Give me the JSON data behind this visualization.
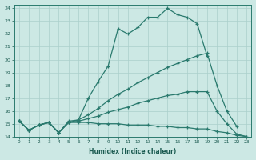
{
  "xlabel": "Humidex (Indice chaleur)",
  "bg_color": "#cce8e4",
  "grid_color": "#aacfcb",
  "line_color": "#2a7a6e",
  "xlim": [
    -0.5,
    23.5
  ],
  "ylim": [
    14,
    24.3
  ],
  "xticks": [
    0,
    1,
    2,
    3,
    4,
    5,
    6,
    7,
    8,
    9,
    10,
    11,
    12,
    13,
    14,
    15,
    16,
    17,
    18,
    19,
    20,
    21,
    22,
    23
  ],
  "yticks": [
    14,
    15,
    16,
    17,
    18,
    19,
    20,
    21,
    22,
    23,
    24
  ],
  "series": [
    {
      "x": [
        0,
        1,
        2,
        3,
        4,
        5,
        6,
        7,
        8,
        9,
        10,
        11,
        12,
        13,
        14,
        15,
        16,
        17,
        18,
        19
      ],
      "y": [
        15.2,
        14.5,
        14.9,
        15.1,
        14.3,
        15.2,
        15.3,
        17.0,
        18.3,
        19.5,
        22.4,
        22.0,
        22.5,
        23.3,
        23.3,
        24.0,
        23.5,
        23.3,
        22.8,
        20.3
      ]
    },
    {
      "x": [
        0,
        1,
        2,
        3,
        4,
        5,
        6,
        7,
        8,
        9,
        10,
        11,
        12,
        13,
        14,
        15,
        16,
        17,
        18,
        19,
        20,
        21,
        22
      ],
      "y": [
        15.2,
        14.5,
        14.9,
        15.1,
        14.3,
        15.1,
        15.3,
        15.7,
        16.2,
        16.8,
        17.3,
        17.7,
        18.2,
        18.6,
        19.0,
        19.4,
        19.7,
        20.0,
        20.3,
        20.5,
        18.0,
        16.0,
        14.8
      ]
    },
    {
      "x": [
        0,
        1,
        2,
        3,
        4,
        5,
        6,
        7,
        8,
        9,
        10,
        11,
        12,
        13,
        14,
        15,
        16,
        17,
        18,
        19,
        20,
        21,
        22,
        23
      ],
      "y": [
        15.2,
        14.5,
        14.9,
        15.1,
        14.3,
        15.1,
        15.2,
        15.4,
        15.6,
        15.9,
        16.1,
        16.3,
        16.6,
        16.8,
        17.0,
        17.2,
        17.3,
        17.5,
        17.5,
        17.5,
        16.0,
        15.0,
        14.2,
        14.0
      ]
    },
    {
      "x": [
        0,
        1,
        2,
        3,
        4,
        5,
        6,
        7,
        8,
        9,
        10,
        11,
        12,
        13,
        14,
        15,
        16,
        17,
        18,
        19,
        20,
        21,
        22,
        23
      ],
      "y": [
        15.2,
        14.5,
        14.9,
        15.1,
        14.3,
        15.1,
        15.1,
        15.1,
        15.0,
        15.0,
        15.0,
        14.9,
        14.9,
        14.9,
        14.8,
        14.8,
        14.7,
        14.7,
        14.6,
        14.6,
        14.4,
        14.3,
        14.1,
        14.0
      ]
    }
  ]
}
